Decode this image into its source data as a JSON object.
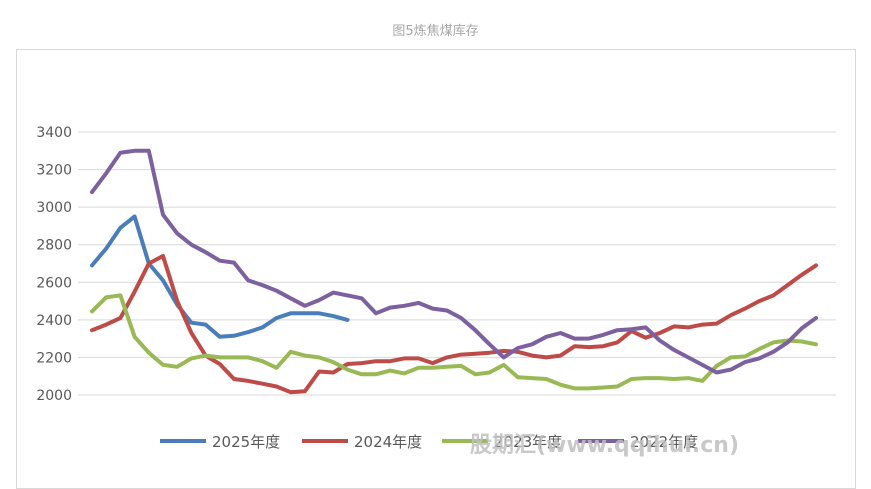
{
  "chart_data": {
    "type": "line",
    "title": "图5炼焦煤库存",
    "xlabel": "",
    "ylabel": "",
    "ylim": [
      2000,
      3400
    ],
    "yticks": [
      2000,
      2200,
      2400,
      2600,
      2800,
      3000,
      3200,
      3400
    ],
    "grid": true,
    "legend_position": "bottom",
    "x_count": 52,
    "series": [
      {
        "name": "2025年度",
        "color": "#4a7ebb",
        "values": [
          2690,
          2780,
          2890,
          2950,
          2700,
          2610,
          2480,
          2385,
          2375,
          2310,
          2315,
          2335,
          2360,
          2410,
          2435,
          2435,
          2435,
          2420,
          2400
        ]
      },
      {
        "name": "2024年度",
        "color": "#be4b48",
        "values": [
          2345,
          2375,
          2410,
          2550,
          2700,
          2740,
          2500,
          2330,
          2210,
          2165,
          2085,
          2075,
          2060,
          2045,
          2015,
          2020,
          2125,
          2120,
          2165,
          2170,
          2180,
          2180,
          2195,
          2195,
          2170,
          2200,
          2215,
          2220,
          2225,
          2235,
          2230,
          2210,
          2200,
          2210,
          2260,
          2255,
          2260,
          2280,
          2340,
          2305,
          2330,
          2365,
          2360,
          2375,
          2380,
          2425,
          2460,
          2500,
          2530,
          2585,
          2640,
          2690
        ]
      },
      {
        "name": "2023年度",
        "color": "#98b954",
        "values": [
          2445,
          2520,
          2530,
          2310,
          2225,
          2160,
          2150,
          2195,
          2210,
          2200,
          2200,
          2200,
          2180,
          2145,
          2230,
          2210,
          2200,
          2175,
          2135,
          2110,
          2110,
          2130,
          2115,
          2145,
          2145,
          2150,
          2155,
          2110,
          2120,
          2160,
          2095,
          2090,
          2085,
          2055,
          2035,
          2035,
          2040,
          2045,
          2085,
          2090,
          2090,
          2085,
          2090,
          2075,
          2155,
          2200,
          2205,
          2245,
          2280,
          2290,
          2285,
          2270
        ]
      },
      {
        "name": "2022年度",
        "color": "#7d60a0",
        "values": [
          3080,
          3180,
          3290,
          3300,
          3300,
          2960,
          2860,
          2800,
          2760,
          2715,
          2705,
          2610,
          2585,
          2555,
          2515,
          2475,
          2505,
          2545,
          2530,
          2515,
          2435,
          2465,
          2475,
          2490,
          2460,
          2450,
          2410,
          2345,
          2270,
          2200,
          2250,
          2270,
          2310,
          2330,
          2300,
          2300,
          2320,
          2345,
          2350,
          2360,
          2290,
          2240,
          2200,
          2160,
          2120,
          2135,
          2175,
          2195,
          2230,
          2280,
          2355,
          2410
        ]
      }
    ]
  },
  "watermark": "股期汇(www.qqihui.cn)"
}
